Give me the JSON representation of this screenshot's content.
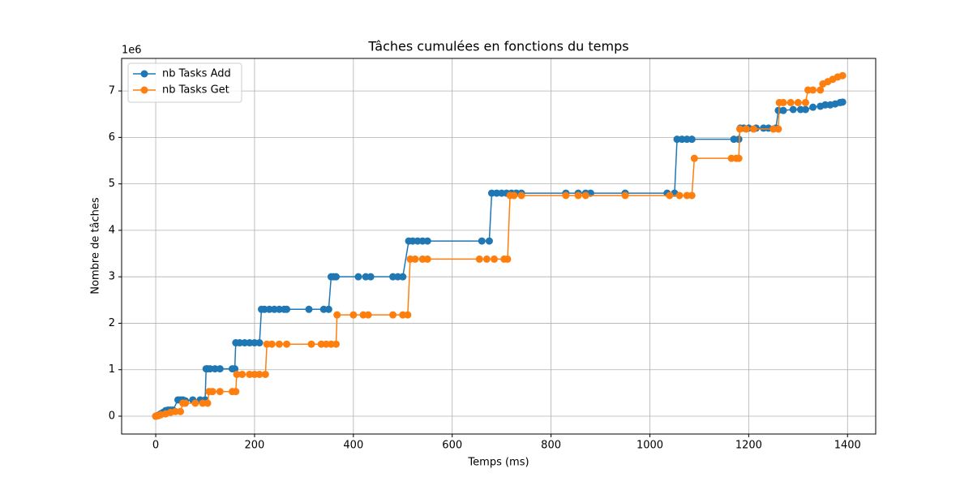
{
  "chart_data": {
    "type": "line",
    "title": "Tâches cumulées en fonctions du temps",
    "x_label": "Temps (ms)",
    "y_label": "Nombre de tâches",
    "y_offset_label": "1e6",
    "xlim": [
      -69,
      1457
    ],
    "ylim": [
      -0.384,
      7.7
    ],
    "xticks": [
      0,
      200,
      400,
      600,
      800,
      1000,
      1200,
      1400
    ],
    "yticks": [
      0,
      1,
      2,
      3,
      4,
      5,
      6,
      7
    ],
    "grid": true,
    "legend": "upper left",
    "series": [
      {
        "name": "nb Tasks Add",
        "color": "#1f77b4",
        "x": [
          0,
          5,
          10,
          15,
          20,
          25,
          30,
          35,
          45,
          50,
          55,
          60,
          75,
          90,
          100,
          102,
          105,
          110,
          120,
          130,
          155,
          160,
          162,
          170,
          180,
          190,
          200,
          210,
          214,
          220,
          230,
          240,
          250,
          260,
          265,
          310,
          340,
          350,
          355,
          360,
          365,
          410,
          425,
          435,
          480,
          490,
          500,
          512,
          520,
          530,
          540,
          550,
          660,
          675,
          680,
          690,
          700,
          710,
          720,
          730,
          740,
          830,
          855,
          870,
          880,
          950,
          1035,
          1050,
          1055,
          1065,
          1075,
          1085,
          1170,
          1180,
          1183,
          1190,
          1200,
          1215,
          1230,
          1240,
          1255,
          1260,
          1270,
          1290,
          1305,
          1315,
          1330,
          1345,
          1355,
          1365,
          1375,
          1385,
          1390
        ],
        "values": [
          0,
          0.02,
          0.05,
          0.08,
          0.12,
          0.13,
          0.13,
          0.13,
          0.35,
          0.35,
          0.35,
          0.33,
          0.35,
          0.35,
          0.35,
          1.02,
          1.02,
          1.02,
          1.02,
          1.02,
          1.02,
          1.02,
          1.58,
          1.58,
          1.58,
          1.58,
          1.58,
          1.58,
          2.3,
          2.3,
          2.3,
          2.3,
          2.3,
          2.3,
          2.3,
          2.3,
          2.3,
          2.3,
          3.0,
          3.0,
          3.0,
          3.0,
          3.0,
          3.0,
          3.0,
          3.0,
          3.0,
          3.77,
          3.77,
          3.77,
          3.77,
          3.77,
          3.77,
          3.77,
          4.8,
          4.8,
          4.8,
          4.8,
          4.8,
          4.8,
          4.8,
          4.8,
          4.8,
          4.8,
          4.8,
          4.8,
          4.8,
          4.8,
          5.96,
          5.96,
          5.96,
          5.96,
          5.96,
          5.96,
          6.2,
          6.2,
          6.2,
          6.2,
          6.2,
          6.2,
          6.2,
          6.58,
          6.58,
          6.6,
          6.6,
          6.6,
          6.65,
          6.67,
          6.7,
          6.7,
          6.72,
          6.75,
          6.76
        ]
      },
      {
        "name": "nb Tasks Get",
        "color": "#ff7f0e",
        "x": [
          0,
          5,
          10,
          20,
          30,
          40,
          50,
          55,
          60,
          80,
          95,
          105,
          108,
          115,
          130,
          155,
          162,
          164,
          175,
          190,
          200,
          210,
          222,
          225,
          235,
          250,
          265,
          315,
          335,
          345,
          355,
          365,
          367,
          400,
          420,
          430,
          480,
          500,
          510,
          515,
          525,
          540,
          550,
          655,
          670,
          685,
          705,
          712,
          717,
          725,
          740,
          830,
          855,
          870,
          950,
          1040,
          1060,
          1075,
          1085,
          1090,
          1165,
          1175,
          1180,
          1182,
          1195,
          1210,
          1250,
          1260,
          1262,
          1270,
          1285,
          1300,
          1315,
          1320,
          1330,
          1345,
          1350,
          1360,
          1370,
          1380,
          1390
        ],
        "values": [
          0,
          0.01,
          0.03,
          0.05,
          0.08,
          0.1,
          0.1,
          0.28,
          0.28,
          0.28,
          0.28,
          0.28,
          0.53,
          0.53,
          0.53,
          0.53,
          0.53,
          0.9,
          0.9,
          0.9,
          0.9,
          0.9,
          0.9,
          1.55,
          1.55,
          1.55,
          1.55,
          1.55,
          1.55,
          1.55,
          1.55,
          1.55,
          2.18,
          2.18,
          2.18,
          2.18,
          2.18,
          2.18,
          2.18,
          3.38,
          3.38,
          3.38,
          3.38,
          3.38,
          3.38,
          3.38,
          3.38,
          3.38,
          4.75,
          4.75,
          4.75,
          4.75,
          4.75,
          4.75,
          4.75,
          4.75,
          4.75,
          4.75,
          4.75,
          5.55,
          5.55,
          5.55,
          5.55,
          6.18,
          6.18,
          6.18,
          6.18,
          6.18,
          6.75,
          6.75,
          6.75,
          6.75,
          6.75,
          7.02,
          7.02,
          7.02,
          7.15,
          7.2,
          7.25,
          7.3,
          7.33
        ]
      }
    ]
  }
}
